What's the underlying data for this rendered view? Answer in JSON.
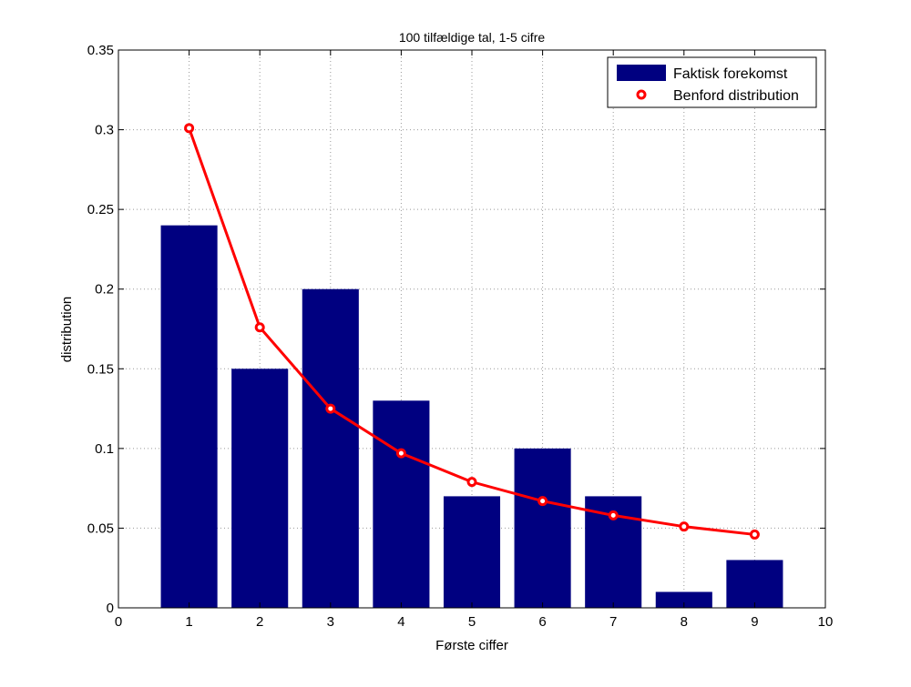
{
  "chart_data": {
    "type": "bar",
    "title": "100 tilfældige tal, 1-5 cifre",
    "xlabel": "Første ciffer",
    "ylabel": "distribution",
    "xlim": [
      0,
      10
    ],
    "ylim": [
      0,
      0.35
    ],
    "xticks": [
      "0",
      "1",
      "2",
      "3",
      "4",
      "5",
      "6",
      "7",
      "8",
      "9",
      "10"
    ],
    "yticks": [
      "0",
      "0.05",
      "0.1",
      "0.15",
      "0.2",
      "0.25",
      "0.3",
      "0.35"
    ],
    "grid": true,
    "legend_position": "top-right",
    "categories": [
      1,
      2,
      3,
      4,
      5,
      6,
      7,
      8,
      9
    ],
    "series": [
      {
        "name": "Faktisk forekomst",
        "type": "bar",
        "color": "#000080",
        "values": [
          0.24,
          0.15,
          0.2,
          0.13,
          0.07,
          0.1,
          0.07,
          0.01,
          0.03
        ]
      },
      {
        "name": "Benford distribution",
        "type": "line",
        "color": "#ff0000",
        "values": [
          0.301,
          0.176,
          0.125,
          0.097,
          0.079,
          0.067,
          0.058,
          0.051,
          0.046
        ]
      }
    ]
  }
}
